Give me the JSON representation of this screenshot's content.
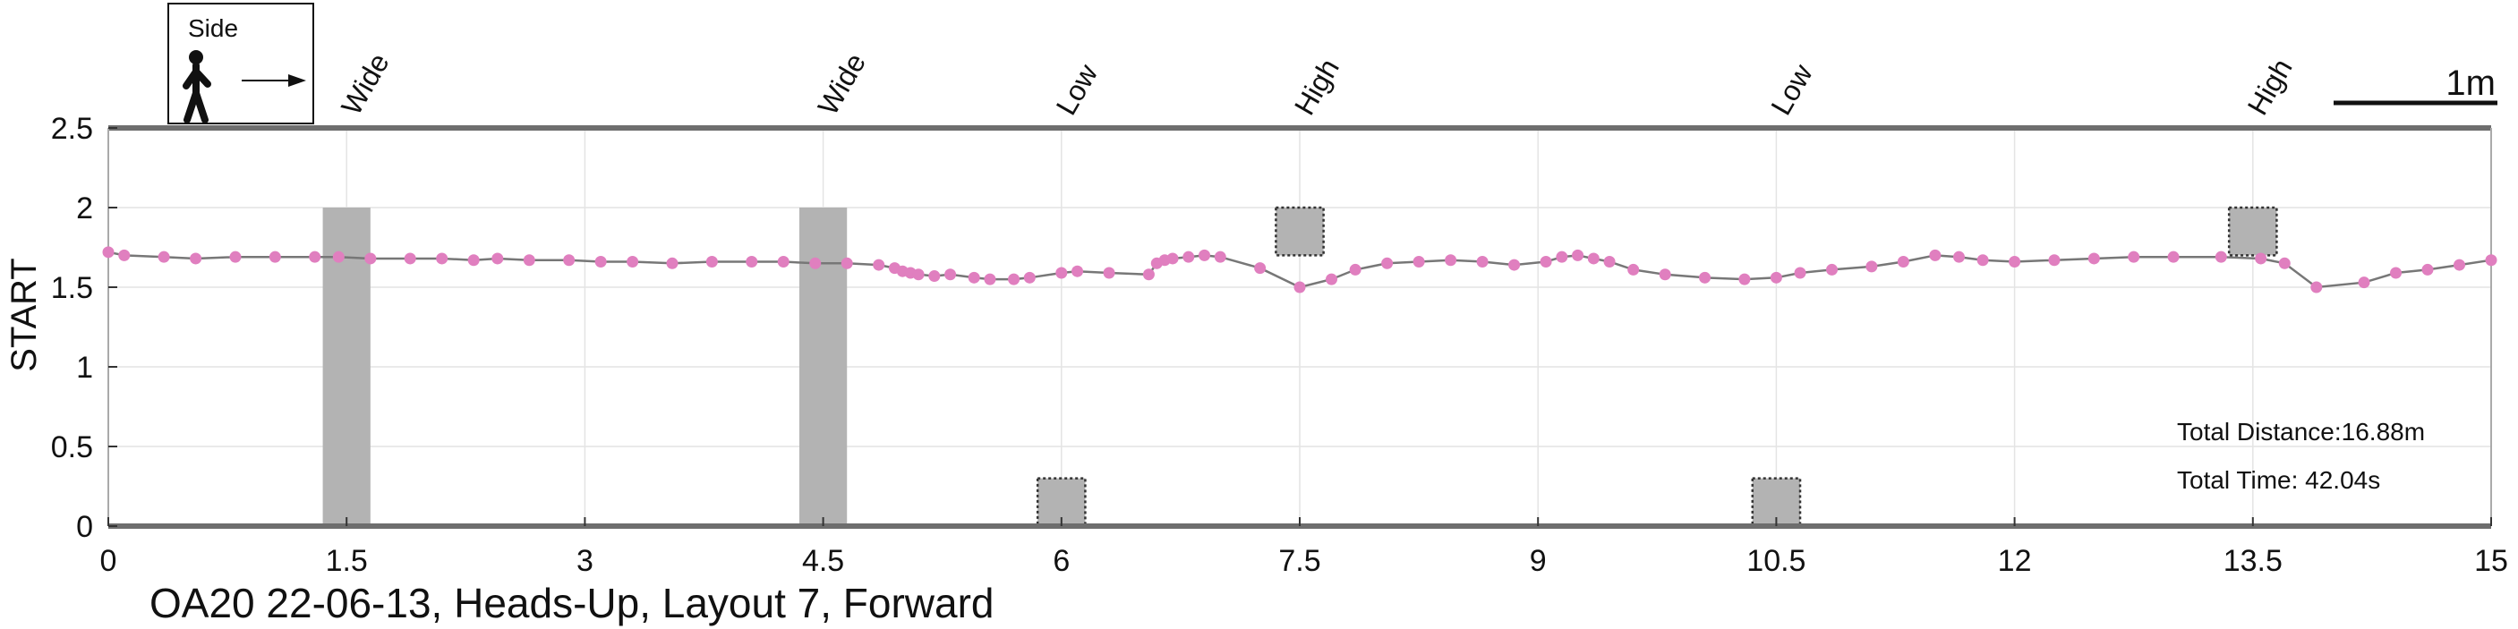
{
  "chart_data": {
    "type": "line",
    "title": "OA20 22-06-13, Heads-Up, Layout 7, Forward",
    "ylabel": "START",
    "xlabel": "",
    "xlim": [
      0,
      15
    ],
    "ylim": [
      0,
      2.5
    ],
    "grid": true,
    "xticks": [
      0,
      1.5,
      3,
      4.5,
      6,
      7.5,
      9,
      10.5,
      12,
      13.5,
      15
    ],
    "xtick_labels": [
      "0",
      "1.5",
      "3",
      "4.5",
      "6",
      "7.5",
      "9",
      "10.5",
      "12",
      "13.5",
      "15"
    ],
    "yticks": [
      0,
      0.5,
      1,
      1.5,
      2,
      2.5
    ],
    "ytick_labels": [
      "0",
      "0.5",
      "1",
      "1.5",
      "2",
      "2.5"
    ],
    "legend_box": {
      "label": "Side",
      "icon": "walking-person-icon",
      "arrow": "right-arrow-icon"
    },
    "scale_bar": {
      "label": "1m",
      "length_m": 1
    },
    "obstacles": [
      {
        "label": "Wide",
        "type": "wide",
        "x_start": 1.35,
        "x_end": 1.65,
        "y_bottom": 0,
        "y_top": 2.0
      },
      {
        "label": "Wide",
        "type": "wide",
        "x_start": 4.35,
        "x_end": 4.65,
        "y_bottom": 0,
        "y_top": 2.0
      },
      {
        "label": "Low",
        "type": "low",
        "x_start": 5.85,
        "x_end": 6.15,
        "y_bottom": 0,
        "y_top": 0.3
      },
      {
        "label": "High",
        "type": "high",
        "x_start": 7.35,
        "x_end": 7.65,
        "y_bottom": 1.7,
        "y_top": 2.0
      },
      {
        "label": "Low",
        "type": "low",
        "x_start": 10.35,
        "x_end": 10.65,
        "y_bottom": 0,
        "y_top": 0.3
      },
      {
        "label": "High",
        "type": "high",
        "x_start": 13.35,
        "x_end": 13.65,
        "y_bottom": 1.7,
        "y_top": 2.0
      }
    ],
    "annotations": {
      "distance": "Total Distance:16.88m",
      "time": "Total Time: 42.04s"
    },
    "series": [
      {
        "color": "#e07fbf",
        "line_color": "#777777",
        "x": [
          0.0,
          0.1,
          0.35,
          0.55,
          0.8,
          1.05,
          1.3,
          1.45,
          1.65,
          1.9,
          2.1,
          2.3,
          2.45,
          2.65,
          2.9,
          3.1,
          3.3,
          3.55,
          3.8,
          4.05,
          4.25,
          4.45,
          4.65,
          4.85,
          4.95,
          5.0,
          5.05,
          5.1,
          5.2,
          5.3,
          5.45,
          5.55,
          5.7,
          5.8,
          6.0,
          6.1,
          6.3,
          6.55,
          6.6,
          6.65,
          6.7,
          6.8,
          6.9,
          7.0,
          7.25,
          7.5,
          7.7,
          7.85,
          8.05,
          8.25,
          8.45,
          8.65,
          8.85,
          9.05,
          9.15,
          9.25,
          9.35,
          9.45,
          9.6,
          9.8,
          10.05,
          10.3,
          10.5,
          10.65,
          10.85,
          11.1,
          11.3,
          11.5,
          11.65,
          11.8,
          12.0,
          12.25,
          12.5,
          12.75,
          13.0,
          13.3,
          13.55,
          13.7,
          13.9,
          14.2,
          14.4,
          14.6,
          14.8,
          15.0
        ],
        "y": [
          1.72,
          1.7,
          1.69,
          1.68,
          1.69,
          1.69,
          1.69,
          1.69,
          1.68,
          1.68,
          1.68,
          1.67,
          1.68,
          1.67,
          1.67,
          1.66,
          1.66,
          1.65,
          1.66,
          1.66,
          1.66,
          1.65,
          1.65,
          1.64,
          1.62,
          1.6,
          1.59,
          1.58,
          1.57,
          1.58,
          1.56,
          1.55,
          1.55,
          1.56,
          1.59,
          1.6,
          1.59,
          1.58,
          1.65,
          1.67,
          1.68,
          1.69,
          1.7,
          1.69,
          1.62,
          1.5,
          1.55,
          1.61,
          1.65,
          1.66,
          1.67,
          1.66,
          1.64,
          1.66,
          1.69,
          1.7,
          1.68,
          1.66,
          1.61,
          1.58,
          1.56,
          1.55,
          1.56,
          1.59,
          1.61,
          1.63,
          1.66,
          1.7,
          1.69,
          1.67,
          1.66,
          1.67,
          1.68,
          1.69,
          1.69,
          1.69,
          1.68,
          1.65,
          1.5,
          1.53,
          1.59,
          1.61,
          1.64,
          1.67
        ]
      }
    ]
  }
}
